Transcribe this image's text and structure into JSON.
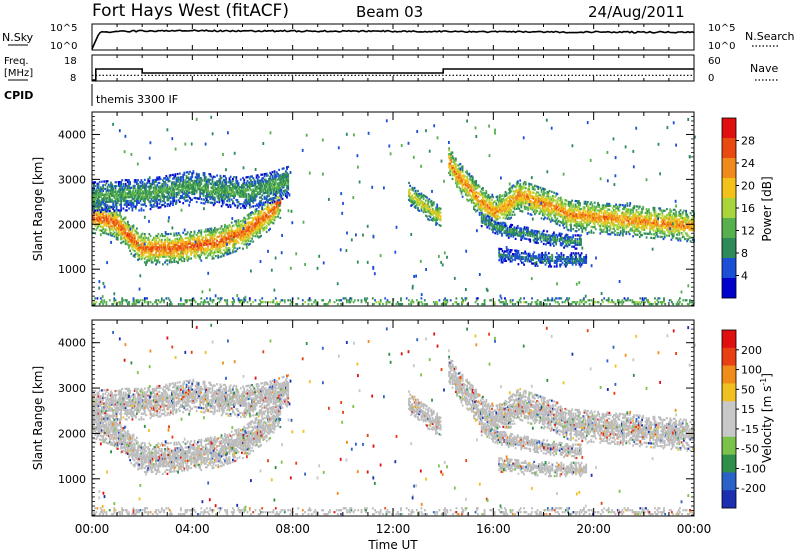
{
  "header": {
    "station": "Fort Hays West (fitACF)",
    "beam": "Beam 03",
    "date": "24/Aug/2011"
  },
  "panels": {
    "nsky": {
      "label": "N.Sky",
      "right_label": "N.Search",
      "left_ticks": [
        "10^5",
        "10^0"
      ],
      "right_ticks": [
        "10^5",
        "10^0"
      ]
    },
    "freq": {
      "label_line1": "Freq.",
      "label_line2": "[MHz]",
      "right_label": "Nave",
      "left_ticks": [
        "18",
        "8"
      ],
      "right_ticks": [
        "60",
        "0"
      ]
    },
    "cpid": {
      "label": "CPID",
      "program": "themis 3300 IF"
    }
  },
  "time_axis": {
    "label": "Time UT",
    "ticks": [
      "00:00",
      "04:00",
      "08:00",
      "12:00",
      "16:00",
      "20:00",
      "00:00"
    ]
  },
  "colors": {
    "power_scale": [
      "#0000cc",
      "#1a4fd6",
      "#2f8a5a",
      "#56b04e",
      "#a8d43c",
      "#f2c21a",
      "#f08a1a",
      "#e84a12",
      "#e01010"
    ],
    "velocity_scale": [
      "#1b2fb0",
      "#2a62c8",
      "#2e8f4a",
      "#7bc24a",
      "#c8c8c8",
      "#c8c8c8",
      "#f0c020",
      "#f08c1a",
      "#e84012",
      "#e01010"
    ],
    "groundscatter": "#bcbcbc"
  },
  "chart_data": [
    {
      "type": "line",
      "title": "N.Sky",
      "x_range": [
        0,
        24
      ],
      "description_series": [
        {
          "x": [
            0,
            0.3,
            1,
            2,
            3,
            4,
            5,
            6,
            7,
            8,
            9,
            10,
            11,
            12,
            13,
            14,
            15,
            16,
            17,
            18,
            19,
            20,
            21,
            22,
            23,
            24
          ],
          "values_log10": [
            0,
            4.2,
            4.4,
            4.5,
            4.6,
            4.6,
            4.55,
            4.5,
            4.5,
            4.5,
            4.45,
            4.45,
            4.45,
            4.45,
            4.4,
            4.4,
            4.35,
            4.3,
            4.3,
            4.25,
            4.25,
            4.25,
            4.2,
            4.2,
            4.2,
            4.2
          ]
        }
      ]
    },
    {
      "type": "line",
      "title": "Freq. [MHz] / Nave",
      "x_range": [
        0,
        24
      ],
      "ylim": [
        8,
        18
      ],
      "ylim_right": [
        0,
        60
      ],
      "series": [
        {
          "name": "Freq.",
          "x": [
            0,
            0.15,
            0.15,
            2,
            2,
            14,
            14,
            24
          ],
          "values": [
            8,
            8,
            13.5,
            13.5,
            11.5,
            11.5,
            13.5,
            13.5
          ]
        },
        {
          "name": "Nave",
          "x": [
            0,
            24
          ],
          "values": [
            14,
            14
          ]
        }
      ]
    },
    {
      "type": "heatmap",
      "title": "Power [dB]",
      "xlabel": "",
      "ylabel": "Slant Range [km]",
      "x_range": [
        0,
        24
      ],
      "ylim": [
        180,
        4500
      ],
      "y_ticks": [
        1000,
        2000,
        3000,
        4000
      ],
      "colorbar": {
        "label": "Power [dB]",
        "ticks": [
          "28",
          "24",
          "20",
          "16",
          "12",
          "8",
          "4"
        ],
        "range": [
          0,
          30
        ]
      },
      "bands": [
        {
          "t": [
            0,
            0.5,
            1,
            1.5,
            2,
            3,
            4,
            5,
            6,
            6.5,
            7,
            7.5
          ],
          "r": [
            2150,
            2100,
            2000,
            1700,
            1450,
            1450,
            1500,
            1600,
            1800,
            2000,
            2200,
            2500
          ],
          "width": 350,
          "power": 20
        },
        {
          "t": [
            0,
            1,
            2,
            3,
            4,
            5,
            6,
            7,
            7.8
          ],
          "r": [
            2600,
            2650,
            2650,
            2750,
            2850,
            2750,
            2700,
            2800,
            2950
          ],
          "width": 350,
          "power": 9
        },
        {
          "t": [
            12.6,
            13.0,
            13.5,
            13.9
          ],
          "r": [
            2700,
            2500,
            2300,
            2150
          ],
          "width": 250,
          "power": 14
        },
        {
          "t": [
            14.2,
            14.5,
            15,
            15.5,
            16,
            16.5,
            17,
            17.5,
            18,
            18.5,
            19,
            20,
            21,
            22,
            23,
            24
          ],
          "r": [
            3400,
            3100,
            2800,
            2500,
            2250,
            2400,
            2650,
            2550,
            2450,
            2350,
            2200,
            2150,
            2100,
            2050,
            2000,
            1950
          ],
          "width": 350,
          "power": 18
        },
        {
          "t": [
            15.5,
            16,
            16.5,
            17,
            17.5,
            18,
            18.5,
            19,
            19.5
          ],
          "r": [
            2100,
            1950,
            1850,
            1800,
            1750,
            1700,
            1650,
            1600,
            1600
          ],
          "width": 150,
          "power": 8
        },
        {
          "t": [
            16.2,
            17,
            18,
            19,
            19.7
          ],
          "r": [
            1300,
            1250,
            1200,
            1200,
            1200
          ],
          "width": 150,
          "power": 6
        },
        {
          "t": [
            0,
            24
          ],
          "r": [
            250,
            250
          ],
          "width": 120,
          "power": 10
        }
      ]
    },
    {
      "type": "heatmap",
      "title": "Velocity [m s^-1]",
      "xlabel": "Time UT",
      "ylabel": "Slant Range [km]",
      "x_range": [
        0,
        24
      ],
      "ylim": [
        180,
        4500
      ],
      "y_ticks": [
        1000,
        2000,
        3000,
        4000
      ],
      "colorbar": {
        "label": "Velocity [m s-1]",
        "ticks": [
          "200",
          "100",
          "50",
          "15",
          "-15",
          "-50",
          "-100",
          "-200"
        ],
        "range": [
          -250,
          250
        ]
      },
      "note": "Same scatter regions as the power panel, dominated by ground scatter shown in grey with scattered coloured velocity pixels."
    }
  ],
  "axis_labels": {
    "slant_range": "Slant Range [km]",
    "slant_ticks": [
      "1000",
      "2000",
      "3000",
      "4000"
    ],
    "power_label": "Power [dB]",
    "power_ticks": [
      "28",
      "24",
      "20",
      "16",
      "12",
      "8",
      "4"
    ],
    "velocity_label": "Velocity [m s",
    "velocity_exp": "-1",
    "velocity_close": "]",
    "velocity_ticks": [
      "200",
      "100",
      "50",
      "15",
      "-15",
      "-50",
      "-100",
      "-200"
    ]
  }
}
